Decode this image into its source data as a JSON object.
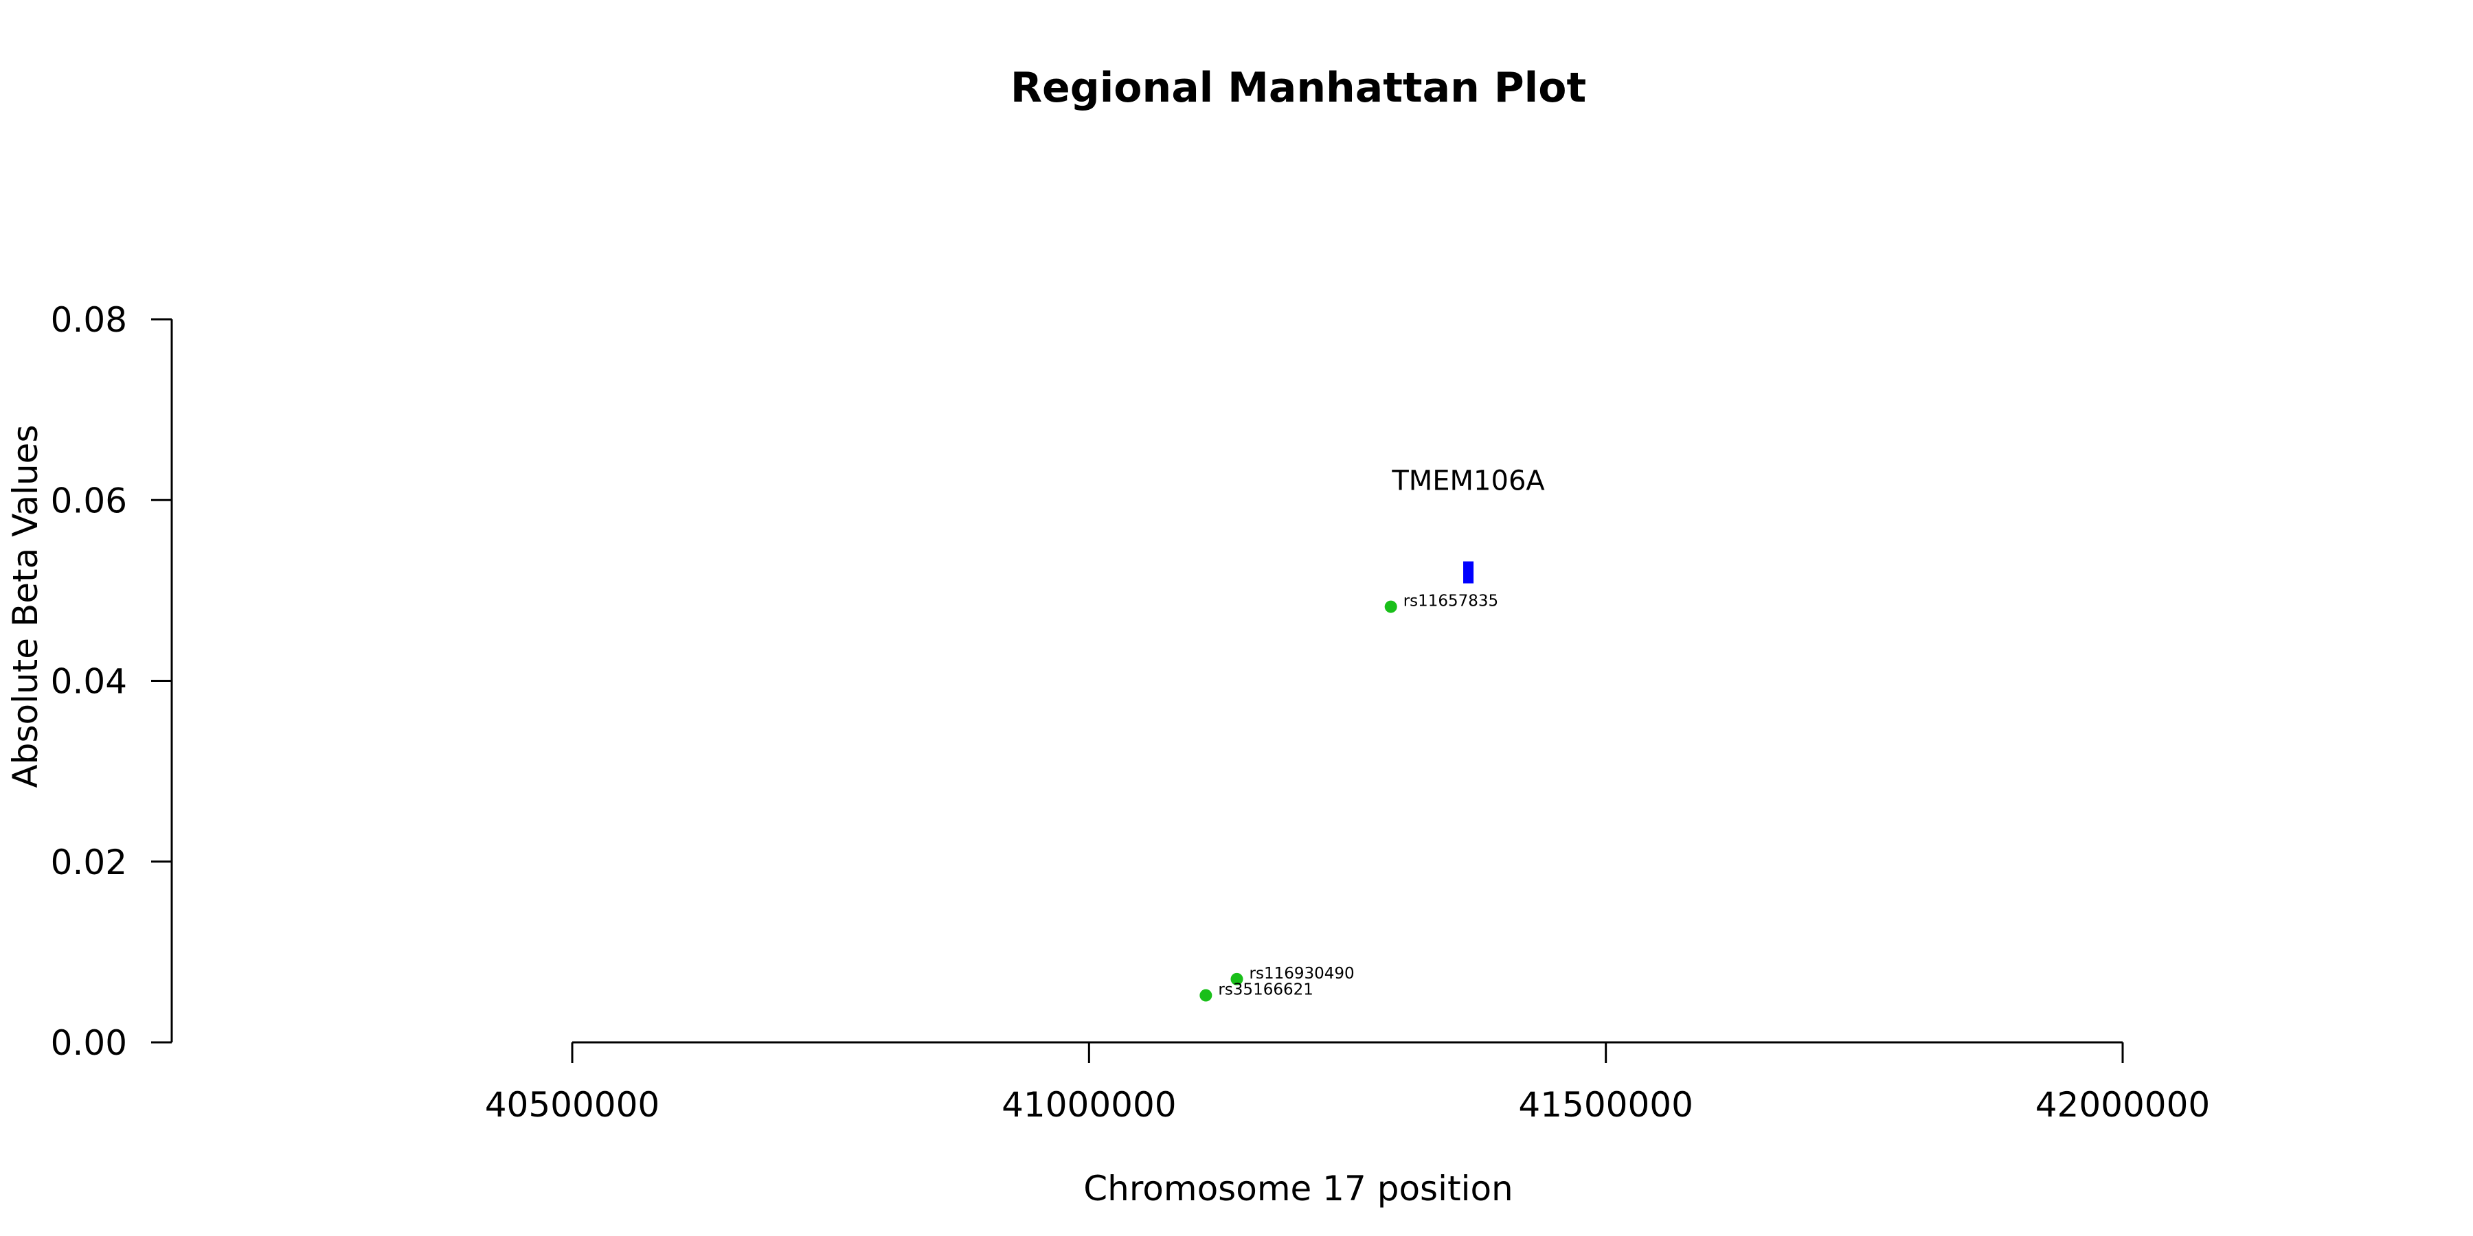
{
  "chart_data": {
    "type": "scatter",
    "title": "Regional Manhattan Plot",
    "xlabel": "Chromosome 17 position",
    "ylabel": "Absolute Beta Values",
    "xlim": [
      40500000,
      42000000
    ],
    "ylim": [
      0,
      0.08
    ],
    "x_ticks": [
      "40500000",
      "41000000",
      "41500000",
      "42000000"
    ],
    "y_ticks": [
      "0.00",
      "0.02",
      "0.04",
      "0.06",
      "0.08"
    ],
    "points_color": "#19bf19",
    "points": [
      {
        "label": "rs11657835",
        "x": 41292000,
        "y": 0.0482
      },
      {
        "label": "rs116930490",
        "x": 41143000,
        "y": 0.007
      },
      {
        "label": "rs35166621",
        "x": 41113000,
        "y": 0.0052
      }
    ],
    "genes": [
      {
        "name": "TMEM106A",
        "x_start": 41362000,
        "x_end": 41372000,
        "y": 0.052,
        "color": "#0000ff"
      }
    ]
  }
}
